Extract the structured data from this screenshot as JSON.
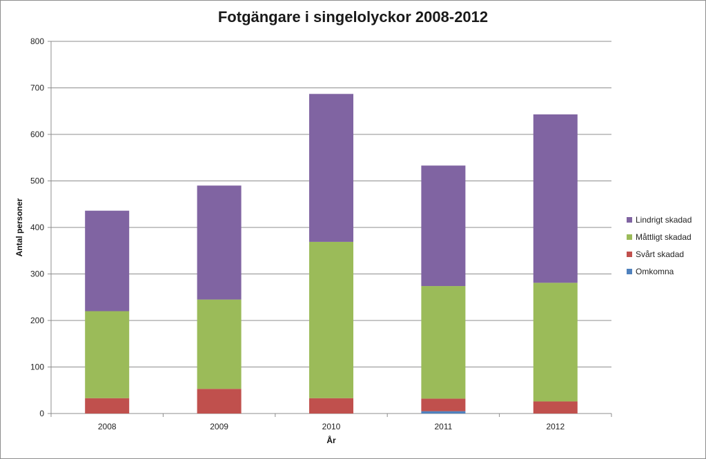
{
  "chart_data": {
    "type": "bar",
    "stacked": true,
    "title": "Fotgängare i singelolyckor 2008-2012",
    "xlabel": "År",
    "ylabel": "Antal personer",
    "categories": [
      "2008",
      "2009",
      "2010",
      "2011",
      "2012"
    ],
    "ylim": [
      0,
      800
    ],
    "yticks": [
      0,
      100,
      200,
      300,
      400,
      500,
      600,
      700,
      800
    ],
    "grid": true,
    "legend_position": "right",
    "series": [
      {
        "name": "Omkomna",
        "color": "#4f81bd",
        "values": [
          0,
          0,
          0,
          5,
          0
        ]
      },
      {
        "name": "Svårt skadad",
        "color": "#c0504d",
        "values": [
          33,
          53,
          33,
          27,
          26
        ]
      },
      {
        "name": "Måttligt skadad",
        "color": "#9bbb59",
        "values": [
          187,
          192,
          336,
          242,
          255
        ]
      },
      {
        "name": "Lindrigt skadad",
        "color": "#8064a2",
        "values": [
          216,
          245,
          318,
          259,
          362
        ]
      }
    ]
  }
}
